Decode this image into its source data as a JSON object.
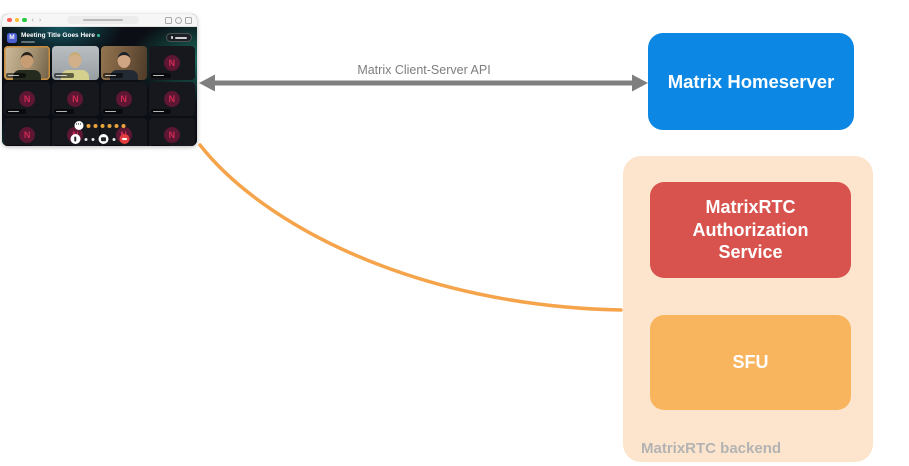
{
  "client_window": {
    "traffic_lights": {
      "close": "#FF5F57",
      "minimize": "#FEBC2E",
      "zoom": "#28C840"
    },
    "app": {
      "logo_letter": "M",
      "meeting_title": "Meeting Title Goes Here",
      "avatar_letter": "N",
      "tiles": [
        {
          "kind": "video",
          "variant": "v1",
          "active": true
        },
        {
          "kind": "video",
          "variant": "v2"
        },
        {
          "kind": "video",
          "variant": "v3"
        },
        {
          "kind": "avatar"
        },
        {
          "kind": "avatar"
        },
        {
          "kind": "avatar"
        },
        {
          "kind": "avatar"
        },
        {
          "kind": "avatar"
        },
        {
          "kind": "avatar",
          "presence": true
        },
        {
          "kind": "avatar"
        },
        {
          "kind": "avatar"
        },
        {
          "kind": "avatar"
        }
      ]
    }
  },
  "connections": {
    "api_arrow": {
      "label": "Matrix Client-Server API",
      "color": "#7F7F7F",
      "label_color": "#7E7E7E"
    },
    "media_curve": {
      "color": "#F6A44B"
    }
  },
  "homeserver": {
    "label": "Matrix Homeserver",
    "bg": "#0D87E4",
    "text_color": "#FFFFFF"
  },
  "rtc_backend": {
    "label": "MatrixRTC backend",
    "label_color": "#B3B3B3",
    "bg": "#FCE5CC",
    "auth_service": {
      "label": "MatrixRTC Authorization Service",
      "bg": "#D9534E",
      "text_color": "#FFFFFF"
    },
    "sfu": {
      "label": "SFU",
      "bg": "#F9B55D",
      "text_color": "#FFFFFF"
    }
  }
}
